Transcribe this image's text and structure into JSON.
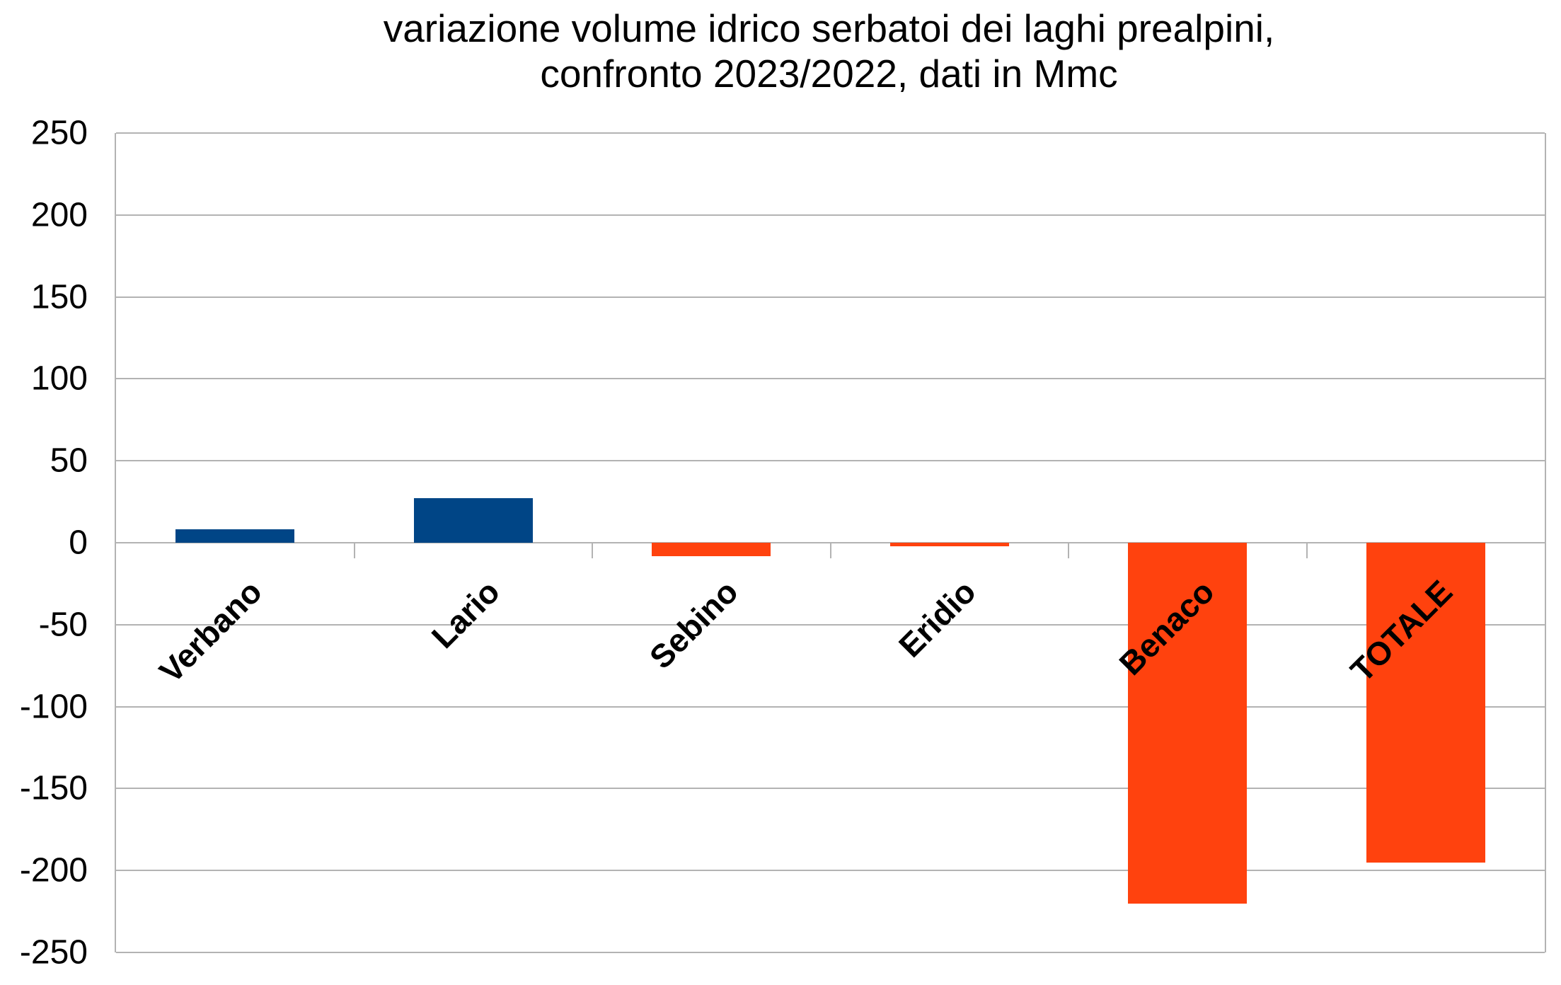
{
  "title": {
    "line1": "variazione volume idrico serbatoi dei laghi prealpini,",
    "line2": "confronto 2023/2022, dati in Mmc"
  },
  "chart_data": {
    "type": "bar",
    "title": "variazione volume idrico serbatoi dei laghi prealpini, confronto 2023/2022, dati in Mmc",
    "categories": [
      "Verbano",
      "Lario",
      "Sebino",
      "Eridio",
      "Benaco",
      "TOTALE"
    ],
    "values": [
      8,
      27,
      -8,
      -2,
      -220,
      -195
    ],
    "unit": "Mmc",
    "xlabel": "",
    "ylabel": "",
    "ylim": [
      -250,
      250
    ],
    "ytick_step": 50,
    "yticks": [
      250,
      200,
      150,
      100,
      50,
      0,
      -50,
      -100,
      -150,
      -200,
      -250
    ],
    "grid": true,
    "legend": "none",
    "category_label_rotation_deg": 45,
    "bar_colors": [
      "#004586",
      "#004586",
      "#FF420E",
      "#FF420E",
      "#FF420E",
      "#FF420E"
    ],
    "colors": {
      "positive_bar_blue": "#004586",
      "negative_bar_orange": "#FF420E",
      "gridline_gray": "#b3b3b3",
      "text": "#000000",
      "background": "#ffffff"
    }
  }
}
